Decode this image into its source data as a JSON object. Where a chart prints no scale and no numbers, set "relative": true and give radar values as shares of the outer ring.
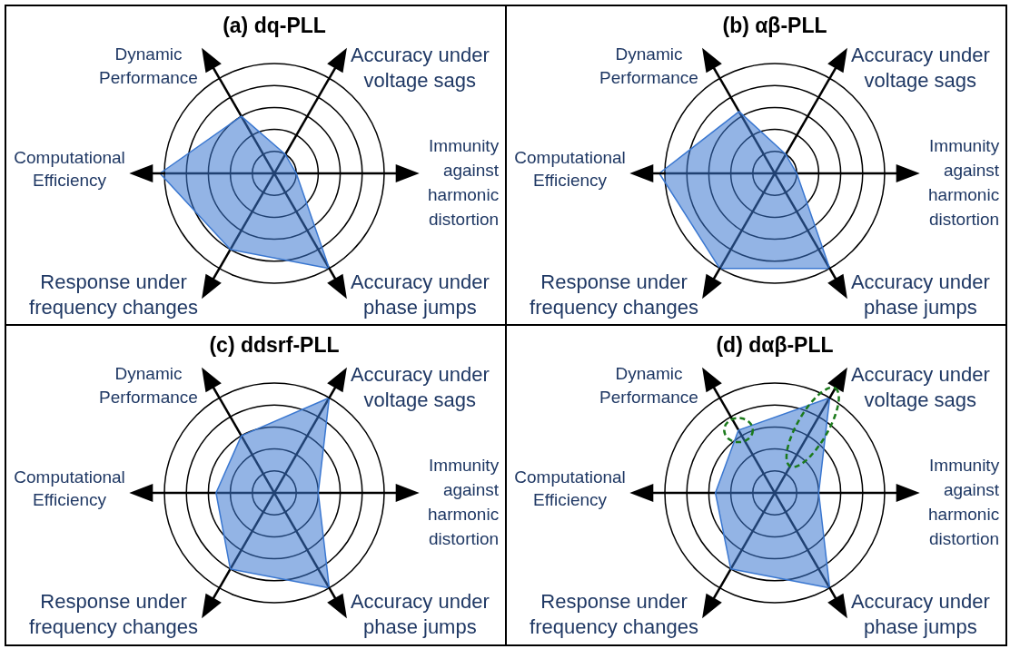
{
  "chart_data": [
    {
      "type": "radar",
      "title": "(a) dq-PLL",
      "categories": [
        "Accuracy under\nvoltage sags",
        "Immunity\nagainst\nharmonic\ndistortion",
        "Accuracy under\nphase jumps",
        "Response under\nfrequency changes",
        "Computational\nEfficiency",
        "Dynamic\nPerformance"
      ],
      "series": [
        {
          "color": "#3a77d0",
          "values": [
            0.2,
            0.2,
            1,
            0.8,
            1.04,
            0.6
          ]
        }
      ],
      "relative": true,
      "grid": true
    },
    {
      "type": "radar",
      "title": "(b) αβ-PLL",
      "categories": [
        "Accuracy under\nvoltage sags",
        "Immunity\nagainst\nharmonic\ndistortion",
        "Accuracy under\nphase jumps",
        "Response under\nfrequency changes",
        "Computational\nEfficiency",
        "Dynamic\nPerformance"
      ],
      "series": [
        {
          "color": "#3a77d0",
          "values": [
            0.2,
            0.2,
            1,
            1,
            1.05,
            0.65
          ]
        }
      ],
      "relative": true,
      "grid": true
    },
    {
      "type": "radar",
      "title": "(c) ddsrf-PLL",
      "categories": [
        "Accuracy under\nvoltage sags",
        "Immunity\nagainst\nharmonic\ndistortion",
        "Accuracy under\nphase jumps",
        "Response under\nfrequency changes",
        "Computational\nEfficiency",
        "Dynamic\nPerformance"
      ],
      "series": [
        {
          "color": "#3a77d0",
          "values": [
            1,
            0.4,
            1,
            0.8,
            0.53,
            0.6
          ]
        }
      ],
      "relative": true,
      "grid": true
    },
    {
      "type": "radar",
      "title": "(d) dαβ-PLL",
      "categories": [
        "Accuracy under\nvoltage sags",
        "Immunity\nagainst\nharmonic\ndistortion",
        "Accuracy under\nphase jumps",
        "Response under\nfrequency changes",
        "Computational\nEfficiency",
        "Dynamic\nPerformance"
      ],
      "series": [
        {
          "color": "#3a77d0",
          "values": [
            1,
            0.4,
            1,
            0.8,
            0.54,
            0.66
          ]
        }
      ],
      "relative": true,
      "grid": true
    }
  ]
}
